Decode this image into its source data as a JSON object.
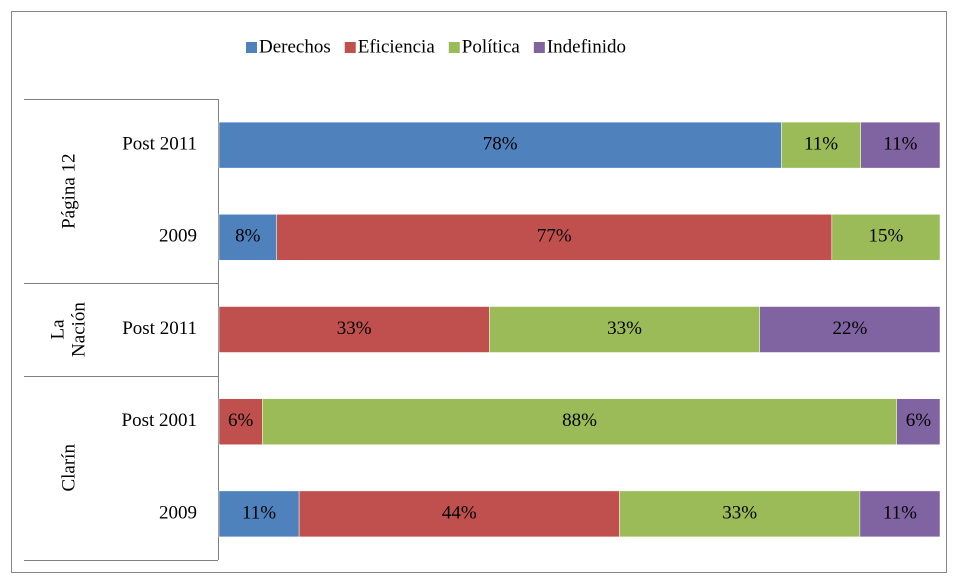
{
  "chart_data": {
    "type": "bar",
    "orientation": "horizontal",
    "stacked": "percent",
    "category_groups": [
      {
        "name": "Página 12",
        "categories": [
          "Post 2011",
          "2009"
        ]
      },
      {
        "name": "La Nación",
        "categories": [
          "Post 2011"
        ]
      },
      {
        "name": "Clarín",
        "categories": [
          "Post 2001",
          "2009"
        ]
      }
    ],
    "series": [
      {
        "name": "Derechos",
        "color": "#4f81bd",
        "values": [
          78,
          8,
          null,
          null,
          11
        ],
        "value_labels": [
          "78%",
          "8%",
          null,
          null,
          "11%"
        ]
      },
      {
        "name": "Eficiencia",
        "color": "#c0504d",
        "values": [
          null,
          77,
          33,
          6,
          44
        ],
        "value_labels": [
          null,
          "77%",
          "33%",
          "6%",
          "44%"
        ]
      },
      {
        "name": "Política",
        "color": "#9bbb59",
        "values": [
          11,
          15,
          33,
          88,
          33
        ],
        "value_labels": [
          "11%",
          "15%",
          "33%",
          "88%",
          "33%"
        ]
      },
      {
        "name": "Indefinido",
        "color": "#8064a2",
        "values": [
          11,
          null,
          22,
          6,
          11
        ],
        "value_labels": [
          "11%",
          null,
          "22%",
          "6%",
          "11%"
        ]
      }
    ],
    "legend": "top"
  }
}
